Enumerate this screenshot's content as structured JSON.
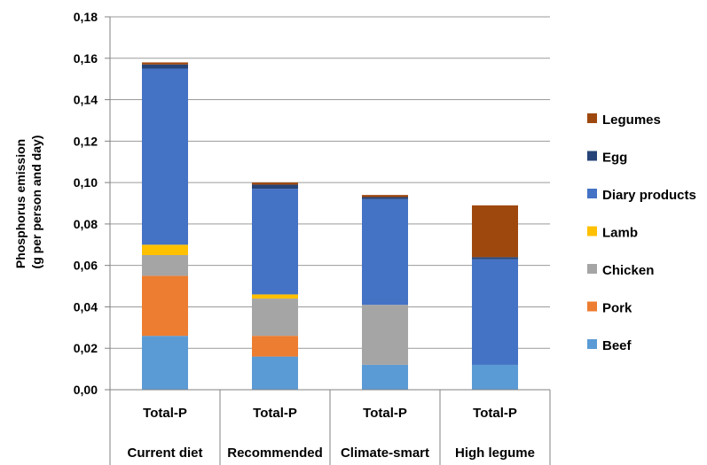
{
  "chart_data": {
    "type": "bar",
    "stacked": true,
    "ylabel_line1": "Phosphorus emission",
    "ylabel_line2": "(g per person and day)",
    "ylim": [
      0,
      0.18
    ],
    "yticks": [
      "0,00",
      "0,02",
      "0,04",
      "0,06",
      "0,08",
      "0,10",
      "0,12",
      "0,14",
      "0,16",
      "0,18"
    ],
    "categories": [
      {
        "sub": "Total-P",
        "group": "Current diet"
      },
      {
        "sub": "Total-P",
        "group": "Recommended"
      },
      {
        "sub": "Total-P",
        "group": "Climate-smart"
      },
      {
        "sub": "Total-P",
        "group": "High legume"
      }
    ],
    "series": [
      {
        "name": "Beef",
        "color": "#5B9BD5",
        "values": [
          0.026,
          0.016,
          0.012,
          0.012
        ]
      },
      {
        "name": "Pork",
        "color": "#ED7D31",
        "values": [
          0.029,
          0.01,
          0.0,
          0.0
        ]
      },
      {
        "name": "Chicken",
        "color": "#A5A5A5",
        "values": [
          0.01,
          0.018,
          0.029,
          0.0
        ]
      },
      {
        "name": "Lamb",
        "color": "#FFC000",
        "values": [
          0.005,
          0.002,
          0.0,
          0.0
        ]
      },
      {
        "name": "Diary products",
        "color": "#4472C4",
        "values": [
          0.085,
          0.051,
          0.051,
          0.051
        ]
      },
      {
        "name": "Egg",
        "color": "#264478",
        "values": [
          0.002,
          0.002,
          0.001,
          0.001
        ]
      },
      {
        "name": "Legumes",
        "color": "#9E480E",
        "values": [
          0.001,
          0.001,
          0.001,
          0.025
        ]
      }
    ],
    "legend_position": "right",
    "grid": true
  }
}
